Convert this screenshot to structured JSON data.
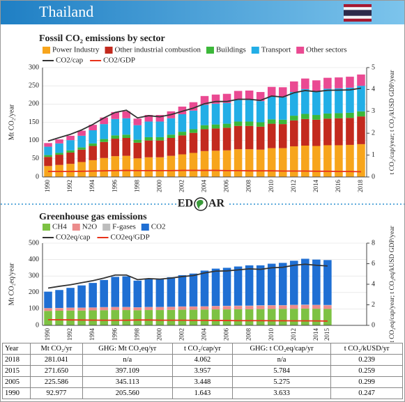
{
  "header": {
    "title": "Thailand"
  },
  "logo": {
    "left": "ED",
    "right": "AR"
  },
  "chart_data": [
    {
      "type": "bar",
      "title": "Fossil CO₂ emissions by sector",
      "y_label": "Mt CO₂/year",
      "y2_label": "t CO₂/cap/year; t CO₂/kUSD GDP/year",
      "categories": [
        "1990",
        null,
        "1992",
        null,
        "1994",
        null,
        "1996",
        null,
        "1998",
        null,
        "2000",
        null,
        "2002",
        null,
        "2004",
        null,
        "2006",
        null,
        "2008",
        null,
        "2010",
        null,
        "2012",
        null,
        "2014",
        null,
        "2016",
        null,
        "2018"
      ],
      "ylim": [
        0,
        300
      ],
      "yticks": [
        0,
        50,
        100,
        150,
        200,
        250,
        300
      ],
      "y2lim": [
        0,
        5
      ],
      "y2ticks": [
        0,
        1,
        2,
        3,
        4,
        5
      ],
      "grid": true,
      "stacked": true,
      "series": [
        {
          "name": "Power Industry",
          "color": "#f7a51c",
          "values": [
            30,
            33,
            36,
            41,
            46,
            52,
            57,
            58,
            51,
            54,
            54,
            58,
            62,
            66,
            71,
            72,
            73,
            76,
            76,
            75,
            79,
            79,
            84,
            86,
            85,
            87,
            87,
            88,
            90
          ]
        },
        {
          "name": "Other industrial combustion",
          "color": "#c32a1e",
          "values": [
            25,
            28,
            31,
            34,
            39,
            44,
            48,
            49,
            43,
            46,
            46,
            49,
            52,
            55,
            60,
            61,
            62,
            64,
            64,
            63,
            67,
            66,
            71,
            73,
            72,
            73,
            74,
            74,
            76
          ]
        },
        {
          "name": "Buildings",
          "color": "#3cb83a",
          "values": [
            5,
            5,
            6,
            6,
            7,
            8,
            9,
            9,
            8,
            9,
            9,
            9,
            10,
            10,
            11,
            11,
            11,
            12,
            12,
            12,
            12,
            12,
            13,
            14,
            13,
            14,
            14,
            14,
            14
          ]
        },
        {
          "name": "Transport",
          "color": "#22aee6",
          "values": [
            23,
            26,
            28,
            32,
            36,
            41,
            45,
            45,
            40,
            43,
            43,
            45,
            48,
            51,
            56,
            57,
            57,
            59,
            59,
            58,
            62,
            62,
            65,
            68,
            66,
            68,
            68,
            69,
            70
          ]
        },
        {
          "name": "Other sectors",
          "color": "#ea4a92",
          "values": [
            10,
            11,
            12,
            14,
            15,
            18,
            19,
            19,
            18,
            18,
            18,
            19,
            21,
            23,
            24,
            25,
            25,
            25,
            26,
            25,
            27,
            27,
            29,
            29,
            29,
            30,
            30,
            30,
            31
          ]
        },
        {
          "name": "CO2/cap",
          "color": "#333333",
          "axis": "y2",
          "values": [
            1.64,
            1.8,
            1.95,
            2.15,
            2.4,
            2.7,
            2.95,
            3.05,
            2.7,
            2.8,
            2.75,
            2.85,
            3.0,
            3.15,
            3.35,
            3.45,
            3.45,
            3.55,
            3.55,
            3.5,
            3.7,
            3.65,
            3.85,
            3.95,
            3.9,
            3.96,
            3.97,
            3.98,
            4.06
          ]
        },
        {
          "name": "CO2/GDP",
          "color": "#e8321a",
          "axis": "y2",
          "values": [
            0.25,
            0.25,
            0.25,
            0.26,
            0.27,
            0.28,
            0.29,
            0.3,
            0.29,
            0.29,
            0.29,
            0.29,
            0.3,
            0.3,
            0.3,
            0.3,
            0.29,
            0.29,
            0.28,
            0.28,
            0.28,
            0.27,
            0.27,
            0.27,
            0.26,
            0.26,
            0.25,
            0.25,
            0.24
          ]
        }
      ]
    },
    {
      "type": "bar",
      "title": "Greenhouse gas emissions",
      "y_label": "Mt CO₂eq/year",
      "y2_label": "t CO₂eq/cap/year; t CO₂eq/kUSD GDP/year",
      "categories": [
        "1990",
        null,
        "1992",
        null,
        "1994",
        null,
        "1996",
        null,
        "1998",
        null,
        "2000",
        null,
        "2002",
        null,
        "2004",
        null,
        "2006",
        null,
        "2008",
        null,
        "2010",
        null,
        "2012",
        null,
        "2014",
        "2015"
      ],
      "ylim": [
        0,
        500
      ],
      "yticks": [
        0,
        100,
        200,
        300,
        400,
        500
      ],
      "y2lim": [
        0,
        8
      ],
      "y2ticks": [
        0,
        2,
        4,
        6,
        8
      ],
      "grid": true,
      "stacked": true,
      "series": [
        {
          "name": "CH4",
          "color": "#7dc243",
          "values": [
            88,
            89,
            90,
            90,
            91,
            92,
            93,
            93,
            92,
            93,
            93,
            94,
            95,
            95,
            96,
            97,
            97,
            98,
            98,
            99,
            100,
            100,
            101,
            102,
            101,
            100
          ]
        },
        {
          "name": "N2O",
          "color": "#ec8c8c",
          "values": [
            16,
            16,
            17,
            17,
            17,
            18,
            18,
            18,
            17,
            18,
            18,
            18,
            19,
            19,
            19,
            20,
            20,
            20,
            20,
            21,
            21,
            21,
            22,
            22,
            22,
            22
          ]
        },
        {
          "name": "F-gases",
          "color": "#bdbdbd",
          "values": [
            1,
            1,
            1,
            1,
            1,
            1,
            1,
            1,
            1,
            1,
            1,
            1,
            1,
            1,
            1,
            1,
            2,
            2,
            2,
            2,
            2,
            2,
            2,
            2,
            2,
            2
          ]
        },
        {
          "name": "CO2",
          "color": "#1f6fd3",
          "values": [
            100,
            109,
            120,
            135,
            149,
            165,
            183,
            186,
            162,
            171,
            171,
            180,
            190,
            200,
            217,
            227,
            231,
            238,
            245,
            243,
            252,
            257,
            268,
            279,
            275,
            273
          ]
        },
        {
          "name": "CO2eq/cap",
          "color": "#333333",
          "axis": "y2",
          "values": [
            3.63,
            3.8,
            3.95,
            4.15,
            4.35,
            4.6,
            4.9,
            4.9,
            4.45,
            4.55,
            4.5,
            4.6,
            4.75,
            4.85,
            5.1,
            5.28,
            5.3,
            5.4,
            5.5,
            5.45,
            5.6,
            5.65,
            5.85,
            5.95,
            5.85,
            5.78
          ]
        },
        {
          "name": "CO2eq/GDP",
          "color": "#e8321a",
          "axis": "y2",
          "values": [
            0.55,
            0.54,
            0.53,
            0.52,
            0.51,
            0.5,
            0.5,
            0.5,
            0.52,
            0.52,
            0.5,
            0.5,
            0.5,
            0.49,
            0.49,
            0.48,
            0.47,
            0.46,
            0.46,
            0.46,
            0.45,
            0.45,
            0.44,
            0.44,
            0.43,
            0.42
          ]
        }
      ]
    }
  ],
  "table": {
    "header": [
      "Year",
      "Mt CO₂/yr",
      "GHG: Mt CO₂eq/yr",
      "t CO₂/cap/yr",
      "GHG: t CO₂eq/cap/yr",
      "t CO₂/kUSD/yr"
    ],
    "rows": [
      [
        "2018",
        "281.041",
        "n/a",
        "4.062",
        "n/a",
        "0.239"
      ],
      [
        "2015",
        "271.650",
        "397.109",
        "3.957",
        "5.784",
        "0.259"
      ],
      [
        "2005",
        "225.586",
        "345.113",
        "3.448",
        "5.275",
        "0.299"
      ],
      [
        "1990",
        "92.977",
        "205.560",
        "1.643",
        "3.633",
        "0.247"
      ]
    ]
  }
}
